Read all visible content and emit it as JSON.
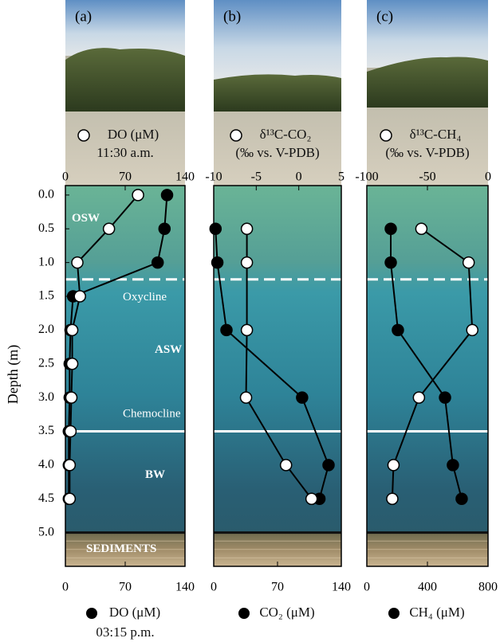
{
  "chart_data": [
    {
      "type": "line",
      "panel": "(a)",
      "ylim": [
        -0.14,
        5.5
      ],
      "ylabel": "Depth (m)",
      "yticks": [
        {
          "value": 0,
          "label": "0.0"
        },
        {
          "value": 0.5,
          "label": "0.5"
        },
        {
          "value": 1,
          "label": "1.0"
        },
        {
          "value": 1.5,
          "label": "1.5"
        },
        {
          "value": 2,
          "label": "2.0"
        },
        {
          "value": 2.5,
          "label": "2.5"
        },
        {
          "value": 3,
          "label": "3.0"
        },
        {
          "value": 3.5,
          "label": "3.5"
        },
        {
          "value": 4,
          "label": "4.0"
        },
        {
          "value": 4.5,
          "label": "4.5"
        },
        {
          "value": 5,
          "label": "5.0"
        }
      ],
      "x2lim": [
        0,
        140
      ],
      "x2ticks": [
        0,
        70,
        140
      ],
      "x2label": [
        "DO (μM)",
        "11:30 a.m."
      ],
      "xlim": [
        0,
        140
      ],
      "xticks": [
        0,
        70,
        140
      ],
      "xlabel": [
        "DO (μM)",
        "03:15 p.m."
      ],
      "series": [
        {
          "axis": "x",
          "color": "#000000",
          "depth": [
            0,
            0.5,
            1,
            1.5,
            2,
            2.5,
            3,
            3.5,
            4,
            4.5
          ],
          "values": [
            119,
            116,
            108,
            9,
            6,
            5,
            5,
            4,
            4,
            4
          ]
        },
        {
          "axis": "x2",
          "color": "#ffffff",
          "depth": [
            0,
            0.5,
            1,
            1.5,
            2,
            2.5,
            3,
            3.5,
            4,
            4.5
          ],
          "values": [
            85,
            51,
            14,
            17,
            8,
            8,
            7,
            6,
            5,
            5
          ]
        }
      ]
    },
    {
      "type": "line",
      "panel": "(b)",
      "ylim": [
        -0.14,
        5.5
      ],
      "x2lim": [
        -10,
        5
      ],
      "x2ticks": [
        -10,
        -5,
        0,
        5
      ],
      "x2label": [
        "δ¹³C-CO₂",
        "(‰ vs. V-PDB)"
      ],
      "xlim": [
        0,
        140
      ],
      "xticks": [
        0,
        70,
        140
      ],
      "xlabel": [
        "CO₂ (μM)"
      ],
      "series": [
        {
          "axis": "x",
          "color": "#000000",
          "depth": [
            0.5,
            1,
            2,
            3,
            4,
            4.5
          ],
          "values": [
            2,
            4,
            14,
            97,
            126,
            116
          ]
        },
        {
          "axis": "x2",
          "color": "#ffffff",
          "depth": [
            0.5,
            1,
            2,
            3,
            4,
            4.5
          ],
          "values": [
            -6.1,
            -6.1,
            -6.1,
            -6.2,
            -1.5,
            1.5
          ]
        }
      ]
    },
    {
      "type": "line",
      "panel": "(c)",
      "ylim": [
        -0.14,
        5.5
      ],
      "x2lim": [
        -100,
        0
      ],
      "x2ticks": [
        -100,
        -50,
        0
      ],
      "x2label": [
        "δ¹³C-CH₄",
        "(‰ vs. V-PDB)"
      ],
      "xlim": [
        0,
        800
      ],
      "xticks": [
        0,
        400,
        800
      ],
      "xlabel": [
        "CH₄ (μM)"
      ],
      "series": [
        {
          "axis": "x",
          "color": "#000000",
          "depth": [
            0.5,
            1,
            2,
            3,
            4,
            4.5
          ],
          "values": [
            158,
            158,
            205,
            516,
            568,
            626
          ]
        },
        {
          "axis": "x2",
          "color": "#ffffff",
          "depth": [
            0.5,
            1,
            2,
            3,
            4,
            4.5
          ],
          "values": [
            -55,
            -16,
            -13,
            -57,
            -78,
            -79
          ]
        }
      ]
    }
  ],
  "boundaries": [
    {
      "depth": 1.25,
      "style": "dashed"
    },
    {
      "depth": 3.5,
      "style": "solid"
    },
    {
      "depth": 5,
      "style": "sediment"
    }
  ],
  "zones": [
    "OSW",
    "Oxycline",
    "ASW",
    "Chemocline",
    "BW",
    "SEDIMENTS"
  ]
}
